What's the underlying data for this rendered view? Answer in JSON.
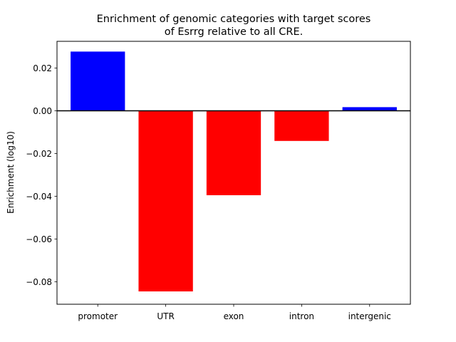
{
  "chart_data": {
    "type": "bar",
    "title_lines": [
      "Enrichment of genomic categories with target scores",
      "of Esrrg relative to all CRE."
    ],
    "xlabel": "",
    "ylabel": "Enrichment (log10)",
    "categories": [
      "promoter",
      "UTR",
      "exon",
      "intron",
      "intergenic"
    ],
    "values": [
      0.0277,
      -0.0845,
      -0.0395,
      -0.0141,
      0.0017
    ],
    "ylim": [
      -0.0905,
      0.0325
    ],
    "yticks": [
      0.02,
      0.0,
      -0.02,
      -0.04,
      -0.06,
      -0.08
    ],
    "ytick_labels": [
      "0.02",
      "0.00",
      "−0.02",
      "−0.04",
      "−0.06",
      "−0.08"
    ],
    "colors": {
      "positive": "#0000ff",
      "negative": "#ff0000",
      "zero_line": "#000000"
    },
    "grid": false,
    "legend": "none"
  }
}
